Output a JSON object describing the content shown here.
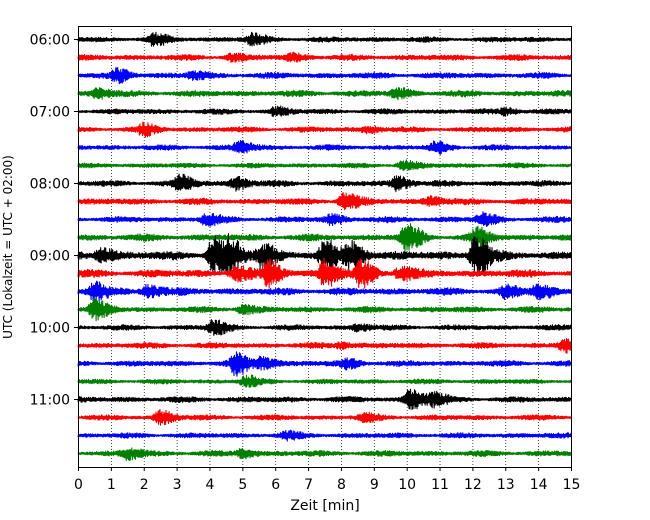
{
  "chart_data": {
    "type": "line",
    "title": "",
    "xlabel": "Zeit  [min]",
    "ylabel": "UTC (Lokalzeit = UTC + 02:00)",
    "xlim": [
      0,
      15
    ],
    "x_ticks": [
      "0",
      "1",
      "2",
      "3",
      "4",
      "5",
      "6",
      "7",
      "8",
      "9",
      "10",
      "11",
      "12",
      "13",
      "14",
      "15"
    ],
    "y_tick_labels": [
      "06:00",
      "07:00",
      "08:00",
      "09:00",
      "10:00",
      "11:00"
    ],
    "grid": "vertical dotted",
    "trace_colors": [
      "#000000",
      "#ff0000",
      "#0000ff",
      "#008000"
    ],
    "traces": [
      {
        "start": "06:00",
        "color": "#000000",
        "noise": 2.2,
        "events": [
          [
            2.3,
            5
          ],
          [
            5.3,
            5
          ]
        ]
      },
      {
        "start": "06:15",
        "color": "#ff0000",
        "noise": 2.4,
        "events": [
          [
            4.6,
            3
          ],
          [
            6.5,
            3
          ]
        ]
      },
      {
        "start": "06:30",
        "color": "#0000ff",
        "noise": 2.4,
        "events": [
          [
            1.2,
            6
          ],
          [
            3.5,
            3
          ]
        ]
      },
      {
        "start": "06:45",
        "color": "#008000",
        "noise": 2.6,
        "events": [
          [
            0.6,
            4
          ],
          [
            9.7,
            4
          ]
        ]
      },
      {
        "start": "07:00",
        "color": "#000000",
        "noise": 2.2,
        "events": [
          [
            6.0,
            4
          ],
          [
            13.0,
            3
          ]
        ]
      },
      {
        "start": "07:15",
        "color": "#ff0000",
        "noise": 2.2,
        "events": [
          [
            2.0,
            5
          ],
          [
            8.8,
            3
          ]
        ]
      },
      {
        "start": "07:30",
        "color": "#0000ff",
        "noise": 2.2,
        "events": [
          [
            4.9,
            5
          ],
          [
            10.9,
            5
          ]
        ]
      },
      {
        "start": "07:45",
        "color": "#008000",
        "noise": 2.0,
        "events": [
          [
            9.9,
            4
          ]
        ]
      },
      {
        "start": "08:00",
        "color": "#000000",
        "noise": 2.4,
        "events": [
          [
            3.1,
            7
          ],
          [
            4.8,
            6
          ],
          [
            9.7,
            7
          ]
        ]
      },
      {
        "start": "08:15",
        "color": "#ff0000",
        "noise": 2.6,
        "events": [
          [
            8.1,
            8
          ],
          [
            10.7,
            4
          ]
        ]
      },
      {
        "start": "08:30",
        "color": "#0000ff",
        "noise": 2.4,
        "events": [
          [
            3.9,
            5
          ],
          [
            7.7,
            4
          ],
          [
            12.3,
            6
          ]
        ]
      },
      {
        "start": "08:45",
        "color": "#008000",
        "noise": 2.8,
        "events": [
          [
            10.0,
            13
          ],
          [
            12.1,
            8
          ]
        ]
      },
      {
        "start": "09:00",
        "color": "#000000",
        "noise": 3.6,
        "events": [
          [
            0.7,
            6
          ],
          [
            4.1,
            17
          ],
          [
            4.6,
            13
          ],
          [
            5.6,
            12
          ],
          [
            7.5,
            13
          ],
          [
            8.3,
            12
          ],
          [
            12.1,
            19
          ]
        ]
      },
      {
        "start": "09:15",
        "color": "#ff0000",
        "noise": 3.2,
        "events": [
          [
            4.8,
            6
          ],
          [
            5.8,
            12
          ],
          [
            7.5,
            13
          ],
          [
            8.6,
            12
          ],
          [
            9.8,
            6
          ]
        ]
      },
      {
        "start": "09:30",
        "color": "#0000ff",
        "noise": 3.0,
        "events": [
          [
            0.5,
            8
          ],
          [
            2.1,
            6
          ],
          [
            13.0,
            5
          ],
          [
            14.0,
            7
          ]
        ]
      },
      {
        "start": "09:45",
        "color": "#008000",
        "noise": 2.4,
        "events": [
          [
            0.5,
            9
          ],
          [
            5.0,
            4
          ]
        ]
      },
      {
        "start": "10:00",
        "color": "#000000",
        "noise": 2.2,
        "events": [
          [
            4.1,
            7
          ],
          [
            8.5,
            3
          ]
        ]
      },
      {
        "start": "10:15",
        "color": "#ff0000",
        "noise": 2.4,
        "events": [
          [
            14.8,
            6
          ],
          [
            8.0,
            3
          ]
        ]
      },
      {
        "start": "10:30",
        "color": "#0000ff",
        "noise": 2.4,
        "events": [
          [
            4.8,
            10
          ],
          [
            5.6,
            6
          ],
          [
            8.2,
            4
          ]
        ]
      },
      {
        "start": "10:45",
        "color": "#008000",
        "noise": 2.0,
        "events": [
          [
            5.1,
            5
          ]
        ]
      },
      {
        "start": "11:00",
        "color": "#000000",
        "noise": 2.4,
        "events": [
          [
            10.1,
            9
          ],
          [
            10.8,
            6
          ]
        ]
      },
      {
        "start": "11:15",
        "color": "#ff0000",
        "noise": 2.2,
        "events": [
          [
            2.5,
            6
          ],
          [
            8.7,
            3
          ]
        ]
      },
      {
        "start": "11:30",
        "color": "#0000ff",
        "noise": 2.2,
        "events": [
          [
            6.3,
            3
          ]
        ]
      },
      {
        "start": "11:45",
        "color": "#008000",
        "noise": 2.4,
        "events": [
          [
            1.5,
            5
          ],
          [
            5.0,
            4
          ]
        ]
      }
    ]
  }
}
